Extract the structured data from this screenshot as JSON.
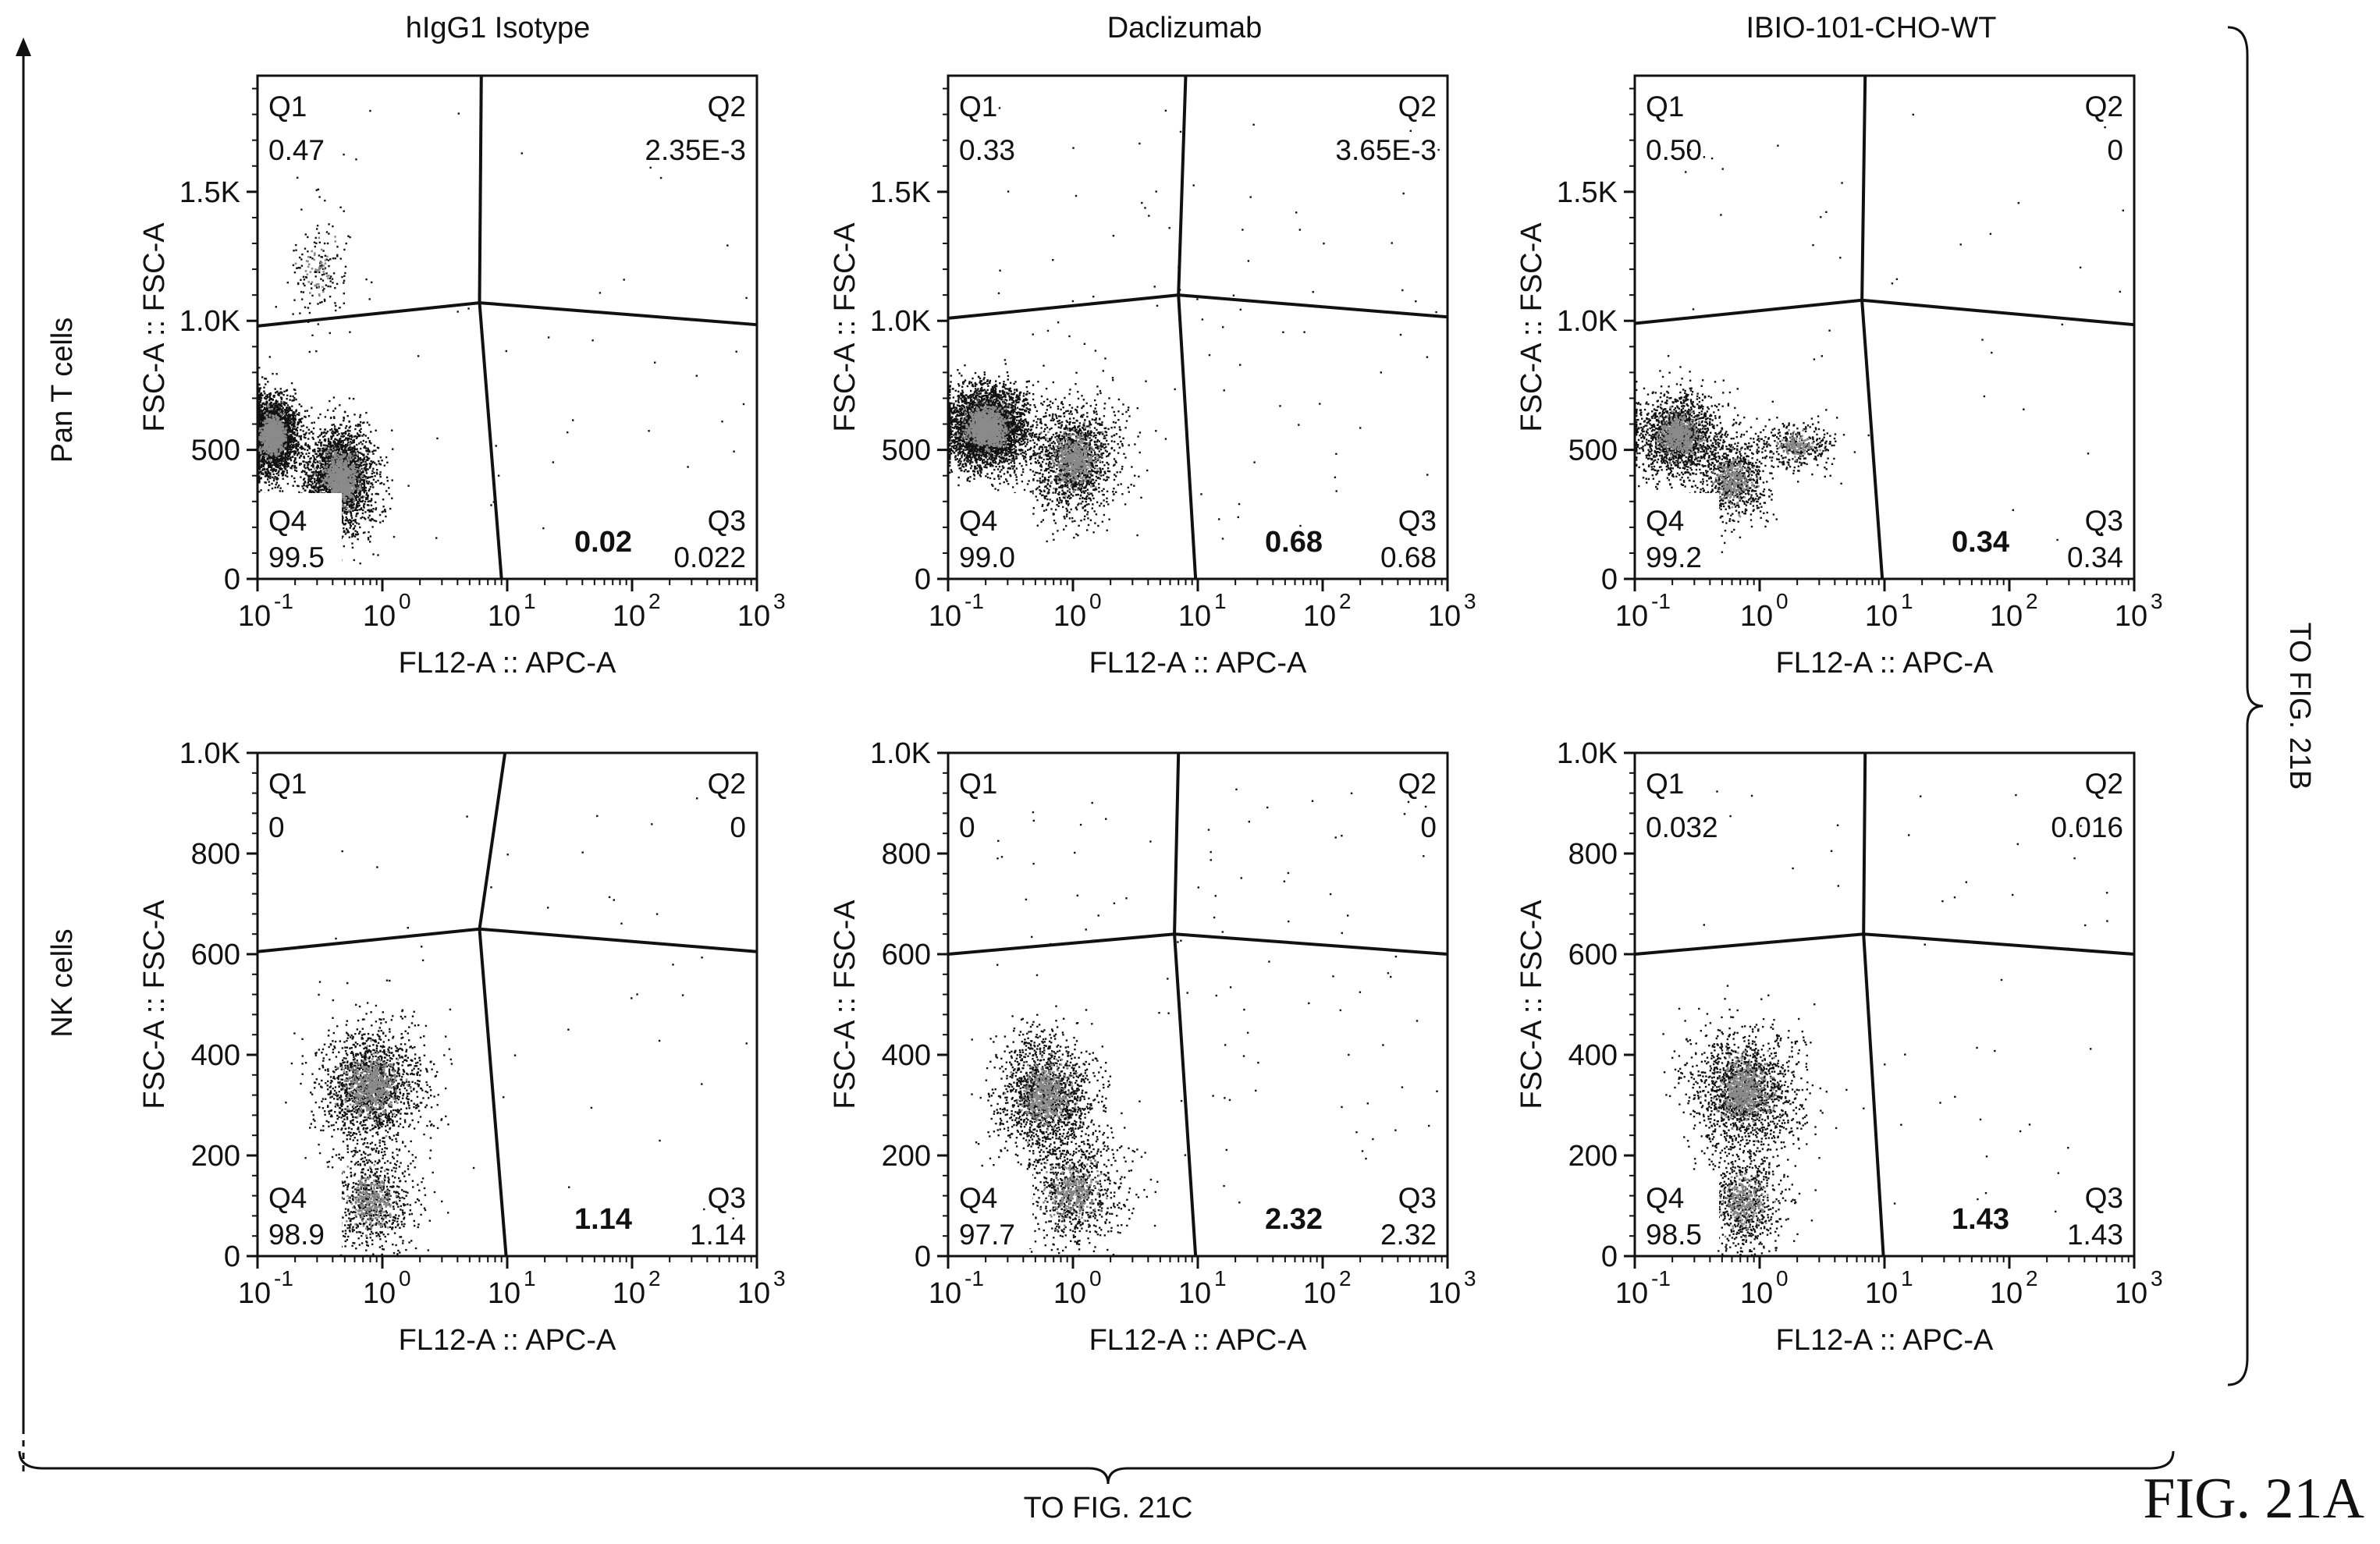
{
  "figure": {
    "label": "FIG. 21A",
    "right_continuation": "TO FIG. 21B",
    "bottom_continuation": "TO FIG. 21C",
    "row_labels": [
      "Pan T cells",
      "NK cells"
    ],
    "column_titles": [
      "hIgG1 Isotype",
      "Daclizumab",
      "IBIO-101-CHO-WT"
    ]
  },
  "chart_data": [
    {
      "type": "scatter",
      "row": 0,
      "col": 0,
      "title": "hIgG1 Isotype",
      "xlabel": "FL12-A :: APC-A",
      "ylabel": "FSC-A :: FSC-A",
      "x_scale": "log",
      "xlim": [
        0.1,
        1000
      ],
      "x_ticks": [
        {
          "base": "10",
          "exp": "-1"
        },
        {
          "base": "10",
          "exp": "0"
        },
        {
          "base": "10",
          "exp": "1"
        },
        {
          "base": "10",
          "exp": "2"
        },
        {
          "base": "10",
          "exp": "3"
        }
      ],
      "ylim": [
        0,
        1950
      ],
      "y_ticks": [
        "0",
        "500",
        "1.0K",
        "1.5K"
      ],
      "y_tick_values": [
        0,
        500,
        1000,
        1500
      ],
      "gate": {
        "x_top": 6.2,
        "x_bottom": 9.0,
        "x_center": 6.0,
        "y_left": 980,
        "y_center": 1070,
        "y_right": 985
      },
      "quadrants": {
        "Q1": "0.47",
        "Q2": "2.35E-3",
        "Q3": "0.022",
        "Q4": "99.5"
      },
      "highlight": "0.02",
      "clusters": [
        {
          "x": 0.13,
          "y": 560,
          "sx": 0.12,
          "sy": 75,
          "n": 2600
        },
        {
          "x": 0.45,
          "y": 390,
          "sx": 0.22,
          "sy": 100,
          "n": 2400
        },
        {
          "x": 0.3,
          "y": 1200,
          "sx": 0.25,
          "sy": 120,
          "n": 140
        }
      ],
      "sparse": 45
    },
    {
      "type": "scatter",
      "row": 0,
      "col": 1,
      "title": "Daclizumab",
      "xlabel": "FL12-A :: APC-A",
      "ylabel": "FSC-A :: FSC-A",
      "x_scale": "log",
      "xlim": [
        0.1,
        1000
      ],
      "x_ticks": [
        {
          "base": "10",
          "exp": "-1"
        },
        {
          "base": "10",
          "exp": "0"
        },
        {
          "base": "10",
          "exp": "1"
        },
        {
          "base": "10",
          "exp": "2"
        },
        {
          "base": "10",
          "exp": "3"
        }
      ],
      "ylim": [
        0,
        1950
      ],
      "y_ticks": [
        "0",
        "500",
        "1.0K",
        "1.5K"
      ],
      "y_tick_values": [
        0,
        500,
        1000,
        1500
      ],
      "gate": {
        "x_top": 8.0,
        "x_bottom": 9.6,
        "x_center": 7.0,
        "y_left": 1010,
        "y_center": 1100,
        "y_right": 1015
      },
      "quadrants": {
        "Q1": "0.33",
        "Q2": "3.65E-3",
        "Q3": "0.68",
        "Q4": "99.0"
      },
      "highlight": "0.68",
      "clusters": [
        {
          "x": 0.2,
          "y": 590,
          "sx": 0.3,
          "sy": 80,
          "n": 3200
        },
        {
          "x": 1.0,
          "y": 470,
          "sx": 0.35,
          "sy": 110,
          "n": 1400
        }
      ],
      "sparse": 90
    },
    {
      "type": "scatter",
      "row": 0,
      "col": 2,
      "title": "IBIO-101-CHO-WT",
      "xlabel": "FL12-A :: APC-A",
      "ylabel": "FSC-A :: FSC-A",
      "x_scale": "log",
      "xlim": [
        0.1,
        1000
      ],
      "x_ticks": [
        {
          "base": "10",
          "exp": "-1"
        },
        {
          "base": "10",
          "exp": "0"
        },
        {
          "base": "10",
          "exp": "1"
        },
        {
          "base": "10",
          "exp": "2"
        },
        {
          "base": "10",
          "exp": "3"
        }
      ],
      "ylim": [
        0,
        1950
      ],
      "y_ticks": [
        "0",
        "500",
        "1.0K",
        "1.5K"
      ],
      "y_tick_values": [
        0,
        500,
        1000,
        1500
      ],
      "gate": {
        "x_top": 7.0,
        "x_bottom": 9.6,
        "x_center": 6.6,
        "y_left": 990,
        "y_center": 1080,
        "y_right": 985
      },
      "quadrants": {
        "Q1": "0.50",
        "Q2": "0",
        "Q3": "0.34",
        "Q4": "99.2"
      },
      "highlight": "0.34",
      "clusters": [
        {
          "x": 0.22,
          "y": 560,
          "sx": 0.3,
          "sy": 80,
          "n": 1500
        },
        {
          "x": 0.6,
          "y": 390,
          "sx": 0.25,
          "sy": 90,
          "n": 700
        },
        {
          "x": 2.0,
          "y": 520,
          "sx": 0.3,
          "sy": 50,
          "n": 300
        }
      ],
      "sparse": 40
    },
    {
      "type": "scatter",
      "row": 1,
      "col": 0,
      "title": "",
      "xlabel": "FL12-A :: APC-A",
      "ylabel": "FSC-A :: FSC-A",
      "x_scale": "log",
      "xlim": [
        0.1,
        1000
      ],
      "x_ticks": [
        {
          "base": "10",
          "exp": "-1"
        },
        {
          "base": "10",
          "exp": "0"
        },
        {
          "base": "10",
          "exp": "1"
        },
        {
          "base": "10",
          "exp": "2"
        },
        {
          "base": "10",
          "exp": "3"
        }
      ],
      "ylim": [
        0,
        1000
      ],
      "y_ticks": [
        "0",
        "200",
        "400",
        "600",
        "800",
        "1.0K"
      ],
      "y_tick_values": [
        0,
        200,
        400,
        600,
        800,
        1000
      ],
      "gate": {
        "x_top": 9.6,
        "x_bottom": 9.8,
        "x_center": 6.0,
        "y_left": 605,
        "y_center": 650,
        "y_right": 605
      },
      "quadrants": {
        "Q1": "0",
        "Q2": "0",
        "Q3": "1.14",
        "Q4": "98.9"
      },
      "highlight": "1.14",
      "clusters": [
        {
          "x": 0.8,
          "y": 340,
          "sx": 0.45,
          "sy": 60,
          "n": 1500
        },
        {
          "x": 0.8,
          "y": 110,
          "sx": 0.35,
          "sy": 55,
          "n": 700
        }
      ],
      "sparse": 50
    },
    {
      "type": "scatter",
      "row": 1,
      "col": 1,
      "title": "",
      "xlabel": "FL12-A :: APC-A",
      "ylabel": "FSC-A :: FSC-A",
      "x_scale": "log",
      "xlim": [
        0.1,
        1000
      ],
      "x_ticks": [
        {
          "base": "10",
          "exp": "-1"
        },
        {
          "base": "10",
          "exp": "0"
        },
        {
          "base": "10",
          "exp": "1"
        },
        {
          "base": "10",
          "exp": "2"
        },
        {
          "base": "10",
          "exp": "3"
        }
      ],
      "ylim": [
        0,
        1000
      ],
      "y_ticks": [
        "0",
        "200",
        "400",
        "600",
        "800",
        "1.0K"
      ],
      "y_tick_values": [
        0,
        200,
        400,
        600,
        800,
        1000
      ],
      "gate": {
        "x_top": 7.0,
        "x_bottom": 9.6,
        "x_center": 6.5,
        "y_left": 600,
        "y_center": 640,
        "y_right": 600
      },
      "quadrants": {
        "Q1": "0",
        "Q2": "0",
        "Q3": "2.32",
        "Q4": "97.7"
      },
      "highlight": "2.32",
      "clusters": [
        {
          "x": 0.6,
          "y": 320,
          "sx": 0.4,
          "sy": 60,
          "n": 1400
        },
        {
          "x": 1.0,
          "y": 130,
          "sx": 0.45,
          "sy": 60,
          "n": 800
        }
      ],
      "sparse": 110
    },
    {
      "type": "scatter",
      "row": 1,
      "col": 2,
      "title": "",
      "xlabel": "FL12-A :: APC-A",
      "ylabel": "FSC-A :: FSC-A",
      "x_scale": "log",
      "xlim": [
        0.1,
        1000
      ],
      "x_ticks": [
        {
          "base": "10",
          "exp": "-1"
        },
        {
          "base": "10",
          "exp": "0"
        },
        {
          "base": "10",
          "exp": "1"
        },
        {
          "base": "10",
          "exp": "2"
        },
        {
          "base": "10",
          "exp": "3"
        }
      ],
      "ylim": [
        0,
        1000
      ],
      "y_ticks": [
        "0",
        "200",
        "400",
        "600",
        "800",
        "1.0K"
      ],
      "y_tick_values": [
        0,
        200,
        400,
        600,
        800,
        1000
      ],
      "gate": {
        "x_top": 7.0,
        "x_bottom": 9.8,
        "x_center": 6.8,
        "y_left": 600,
        "y_center": 640,
        "y_right": 600
      },
      "quadrants": {
        "Q1": "0.032",
        "Q2": "0.016",
        "Q3": "1.43",
        "Q4": "98.5"
      },
      "highlight": "1.43",
      "clusters": [
        {
          "x": 0.75,
          "y": 330,
          "sx": 0.45,
          "sy": 60,
          "n": 1500
        },
        {
          "x": 0.75,
          "y": 110,
          "sx": 0.3,
          "sy": 55,
          "n": 650
        }
      ],
      "sparse": 55
    }
  ]
}
